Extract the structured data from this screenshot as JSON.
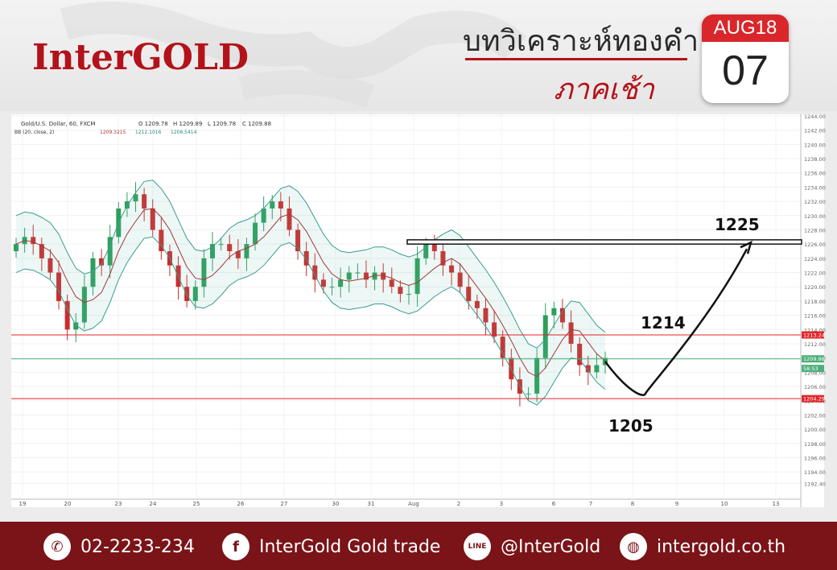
{
  "header": {
    "logo": "InterGOLD",
    "title": "บทวิเคราะห์ทองคำ",
    "subtitle": "ภาคเช้า",
    "calendar_month": "AUG18",
    "calendar_day": "07"
  },
  "chart_data": {
    "type": "candlestick",
    "symbol_line": "Gold/U.S. Dollar, 60, FXCM",
    "ohlc": {
      "o": "O 1209.78",
      "h": "H 1209.89",
      "l": "L 1209.78",
      "c": "C 1209.88"
    },
    "bb_label": "BB (20, close, 2)",
    "bb_values": [
      "1209.3215",
      "1212.1016",
      "1206.5414"
    ],
    "ylim": [
      1190.4,
      1244.0
    ],
    "y_ticks": [
      "1244.00",
      "1242.00",
      "1240.00",
      "1238.00",
      "1236.00",
      "1234.00",
      "1232.00",
      "1230.00",
      "1228.00",
      "1226.00",
      "1224.00",
      "1222.00",
      "1220.00",
      "1218.00",
      "1216.00",
      "1214.00",
      "1212.00",
      "1210.00",
      "1208.00",
      "1206.00",
      "1204.00",
      "1202.00",
      "1200.00",
      "1198.00",
      "1196.00",
      "1194.00",
      "1192.40"
    ],
    "x_ticks": [
      "19",
      "20",
      "23",
      "24",
      "25",
      "26",
      "27",
      "30",
      "31",
      "Aug",
      "2",
      "3",
      "6",
      "7",
      "8",
      "9",
      "10",
      "13"
    ],
    "price_tags": [
      {
        "value": 1213.24,
        "label": "1213.24",
        "color": "#e0262a"
      },
      {
        "value": 1209.88,
        "label": "1209.88",
        "color": "#4caf7a"
      },
      {
        "value": 1208.53,
        "label": "58:53",
        "color": "#4caf7a"
      },
      {
        "value": 1204.29,
        "label": "1204.29",
        "color": "#e0262a"
      }
    ],
    "resistance_box": {
      "from": 1226.0,
      "to": 1226.6
    },
    "annotations": [
      {
        "text": "1225",
        "value": 1225
      },
      {
        "text": "1214",
        "value": 1214
      },
      {
        "text": "1205",
        "value": 1205
      }
    ],
    "series": [
      {
        "name": "Gold",
        "close": [
          1226,
          1227,
          1226,
          1224,
          1222,
          1218,
          1214,
          1215,
          1220,
          1224,
          1223,
          1227,
          1231,
          1232,
          1233,
          1231,
          1228,
          1225,
          1223,
          1220,
          1218,
          1220,
          1224,
          1226,
          1226,
          1225,
          1224,
          1226,
          1229,
          1231,
          1232,
          1231,
          1228,
          1225,
          1223,
          1221,
          1220,
          1220,
          1221,
          1222,
          1222,
          1221,
          1222,
          1221,
          1220,
          1219,
          1219,
          1224,
          1226,
          1225,
          1223,
          1222,
          1220,
          1218,
          1217,
          1215,
          1213,
          1210,
          1207,
          1205,
          1205,
          1210,
          1216,
          1217,
          1215,
          1212,
          1209,
          1208,
          1209,
          1210
        ]
      }
    ]
  },
  "footer": {
    "phone": "02-2233-234",
    "facebook": "InterGold Gold trade",
    "line": "@InterGold",
    "web": "intergold.co.th"
  }
}
